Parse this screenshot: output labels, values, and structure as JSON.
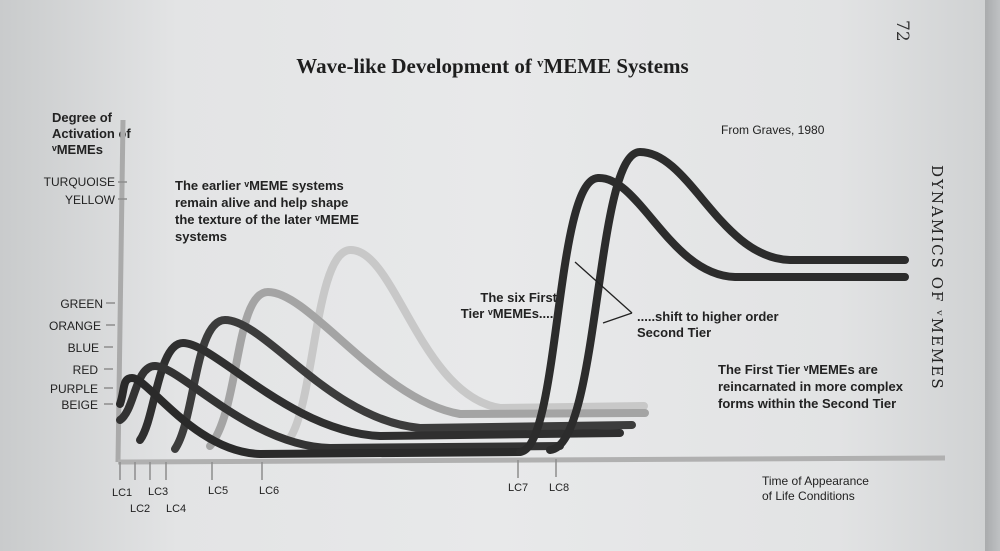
{
  "page_number": "72",
  "running_head": "DYNAMICS OF ᵛMEMES",
  "title": "Wave-like Development of ᵛMEME Systems",
  "source": "From Graves, 1980",
  "y_axis_label": [
    "Degree of",
    "Activation of",
    "ᵛMEMEs"
  ],
  "x_axis_label": [
    "Time of Appearance",
    "of Life Conditions"
  ],
  "levels": [
    "TURQUOISE",
    "YELLOW",
    "GREEN",
    "ORANGE",
    "BLUE",
    "RED",
    "PURPLE",
    "BEIGE"
  ],
  "life_conditions": [
    "LC1",
    "LC2",
    "LC3",
    "LC4",
    "LC5",
    "LC6",
    "LC7",
    "LC8"
  ],
  "annotations": {
    "earlier": [
      "The earlier ᵛMEME systems",
      "remain alive and help shape",
      "the texture of the later ᵛMEME",
      "systems"
    ],
    "first_tier": [
      "The six First",
      "Tier ᵛMEMEs....."
    ],
    "shift": [
      ".....shift to higher order",
      "Second Tier"
    ],
    "reincarnated": [
      "The First Tier ᵛMEMEs are",
      "reincarnated in more complex",
      "forms within the Second Tier"
    ]
  },
  "colors": {
    "ink": "#2b2b2b",
    "mid": "#5a5a5a",
    "light": "#9a9a9a",
    "lighter": "#b9b9b9",
    "axis": "#a9a9a9"
  }
}
